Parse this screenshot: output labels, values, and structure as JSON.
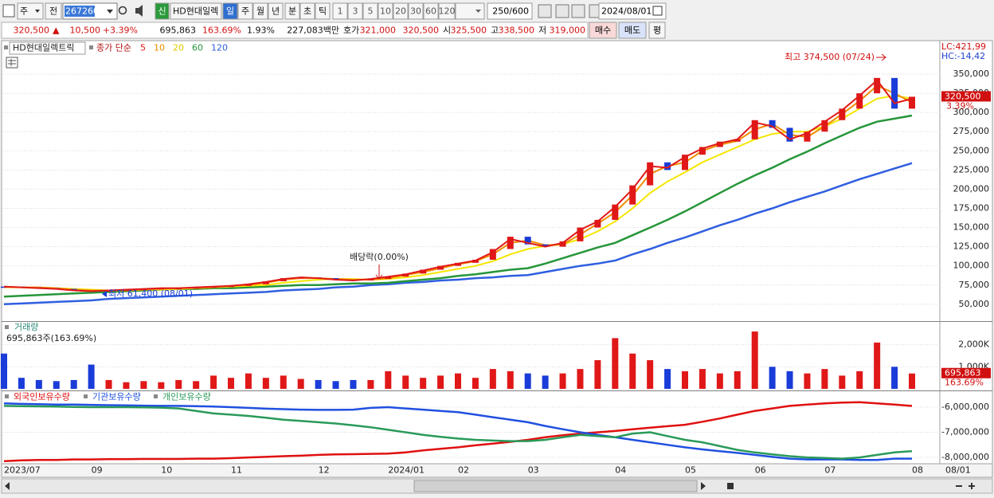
{
  "toolbar": {
    "period_type": "주",
    "prev": "전",
    "code": "267260",
    "new_badge": "신",
    "name": "HD현대일렉",
    "periods": [
      "일",
      "주",
      "월",
      "년",
      "분",
      "초",
      "틱"
    ],
    "intervals": [
      "1",
      "3",
      "5",
      "10",
      "20",
      "30",
      "60",
      "120"
    ],
    "count": "250/600",
    "date": "2024/08/01"
  },
  "quote": {
    "price": "320,500",
    "arrow": "▲",
    "change": "10,500",
    "change_pct": "+3.39%",
    "volume": "695,863",
    "volume_pct": "163.69%",
    "turnover": "1.93%",
    "amount": "227,083백만",
    "ask_label": "호가",
    "ask": "321,000",
    "bid": "320,500",
    "open_label": "시",
    "open": "325,500",
    "high_label": "고",
    "high": "338,500",
    "low_label": "저",
    "low": "319,000",
    "buy": "매수",
    "sell": "매도",
    "avg": "평"
  },
  "ui": {
    "end_date": "08/01"
  },
  "chart_data": [
    {
      "type": "stock",
      "title": "HD현대일렉트릭",
      "legend_title": "종가 단순",
      "categories": [
        "2023/07",
        null,
        null,
        null,
        null,
        "09",
        null,
        null,
        null,
        "10",
        null,
        null,
        null,
        "11",
        null,
        null,
        null,
        null,
        "12",
        null,
        null,
        null,
        "2024/01",
        null,
        null,
        null,
        "02",
        null,
        null,
        null,
        "03",
        null,
        null,
        null,
        null,
        "04",
        null,
        null,
        null,
        "05",
        null,
        null,
        null,
        "06",
        null,
        null,
        null,
        "07",
        null,
        null,
        null,
        null,
        "08"
      ],
      "close": [
        73000,
        72000,
        71000,
        70000,
        68000,
        67000,
        68000,
        69000,
        70000,
        71000,
        71000,
        72000,
        73000,
        74000,
        76000,
        80000,
        84000,
        85000,
        84000,
        82000,
        81000,
        83000,
        86000,
        90000,
        95000,
        100000,
        104000,
        108000,
        122000,
        138000,
        128000,
        125000,
        132000,
        150000,
        160000,
        180000,
        205000,
        235000,
        225000,
        245000,
        255000,
        262000,
        265000,
        290000,
        280000,
        262000,
        275000,
        290000,
        305000,
        325000,
        345000,
        305000,
        320500
      ],
      "up_color": "#e01818",
      "down_color": "#1a3cd8",
      "series": [
        {
          "name": "5",
          "color": "#e01818",
          "values": [
            73000,
            72000,
            71000,
            70000,
            68000,
            67000,
            68000,
            69000,
            70000,
            71000,
            71000,
            72000,
            73000,
            74000,
            76000,
            79000,
            83000,
            85000,
            84000,
            82000,
            81000,
            83000,
            86000,
            89000,
            94000,
            99000,
            103000,
            107000,
            118000,
            135000,
            130000,
            125000,
            130000,
            147000,
            158000,
            177000,
            200000,
            230000,
            228000,
            242000,
            253000,
            260000,
            265000,
            287000,
            282000,
            265000,
            273000,
            288000,
            303000,
            322000,
            342000,
            312000,
            318000
          ]
        },
        {
          "name": "10",
          "color": "#f08c00",
          "values": [
            73000,
            72000,
            72000,
            71000,
            69000,
            68000,
            68000,
            68000,
            69000,
            70000,
            71000,
            71000,
            72000,
            74000,
            75000,
            78000,
            82000,
            84000,
            84000,
            83000,
            82000,
            82000,
            84000,
            88000,
            92000,
            97000,
            102000,
            106000,
            115000,
            130000,
            133000,
            127000,
            128000,
            141000,
            155000,
            170000,
            192000,
            220000,
            230000,
            235000,
            250000,
            258000,
            263000,
            278000,
            285000,
            271000,
            268000,
            282000,
            298000,
            315000,
            335000,
            325000,
            313000
          ]
        },
        {
          "name": "20",
          "color": "#f5e600",
          "values": [
            72000,
            72000,
            71000,
            71000,
            70000,
            69000,
            68000,
            68000,
            69000,
            69000,
            70000,
            71000,
            72000,
            73000,
            74000,
            75000,
            78000,
            80000,
            82000,
            83000,
            83000,
            82000,
            83000,
            85000,
            88000,
            92000,
            96000,
            100000,
            106000,
            115000,
            122000,
            126000,
            128000,
            135000,
            145000,
            158000,
            175000,
            195000,
            210000,
            222000,
            235000,
            245000,
            255000,
            265000,
            272000,
            275000,
            275000,
            282000,
            292000,
            305000,
            318000,
            322000,
            318000
          ]
        },
        {
          "name": "60",
          "color": "#26963a",
          "values": [
            60000,
            61000,
            62000,
            63000,
            64000,
            65000,
            66000,
            67000,
            68000,
            69000,
            70000,
            70000,
            71000,
            71000,
            72000,
            73000,
            74000,
            75000,
            75000,
            76000,
            77000,
            77000,
            78000,
            80000,
            82000,
            84000,
            87000,
            89000,
            92000,
            95000,
            97000,
            103000,
            110000,
            117000,
            124000,
            130000,
            140000,
            150000,
            160000,
            171000,
            183000,
            195000,
            207000,
            218000,
            228000,
            239000,
            249000,
            260000,
            270000,
            280000,
            288000,
            292000,
            296000
          ]
        },
        {
          "name": "120",
          "color": "#2f5fe0",
          "values": [
            50000,
            51000,
            52000,
            53000,
            54000,
            55000,
            57000,
            58000,
            59000,
            60000,
            61000,
            62000,
            63000,
            64000,
            65000,
            66000,
            68000,
            69000,
            70000,
            72000,
            73000,
            75000,
            76000,
            78000,
            79000,
            81000,
            82000,
            84000,
            85000,
            87000,
            88000,
            92000,
            96000,
            100000,
            103000,
            107000,
            115000,
            122000,
            130000,
            137000,
            145000,
            153000,
            160000,
            168000,
            175000,
            183000,
            190000,
            197000,
            205000,
            213000,
            220000,
            227000,
            234000
          ]
        }
      ],
      "ylim": [
        28000,
        389500
      ],
      "yticks": [
        {
          "value": 50000,
          "label": "50,000"
        },
        {
          "value": 75000,
          "label": "75,000"
        },
        {
          "value": 100000,
          "label": "100,000"
        },
        {
          "value": 125000,
          "label": "125,000"
        },
        {
          "value": 150000,
          "label": "150,000"
        },
        {
          "value": 175000,
          "label": "175,000"
        },
        {
          "value": 200000,
          "label": "200,000"
        },
        {
          "value": 225000,
          "label": "225,000"
        },
        {
          "value": 250000,
          "label": "250,000"
        },
        {
          "value": 275000,
          "label": "275,000"
        },
        {
          "value": 300000,
          "label": "300,000"
        },
        {
          "value": 325000,
          "label": "325,000"
        },
        {
          "value": 350000,
          "label": "350,000"
        }
      ],
      "grid": true,
      "annotations": [
        {
          "text": "최고 374,500 (07/24)"
        },
        {
          "text": "최저 61,400 (08/01)"
        },
        {
          "text": "배당락(0.00%)"
        }
      ],
      "indicators": [
        "LC:421,99",
        "HC:-14,42"
      ],
      "last_label": "320,500",
      "last_pct_label": "3.39%"
    },
    {
      "type": "bar",
      "title": "거래량",
      "subtitle": "695,863주(163.69%)",
      "values": [
        1600000,
        500000,
        400000,
        350000,
        400000,
        1100000,
        400000,
        300000,
        350000,
        300000,
        400000,
        350000,
        600000,
        500000,
        700000,
        500000,
        600000,
        450000,
        400000,
        350000,
        400000,
        400000,
        800000,
        600000,
        500000,
        600000,
        700000,
        500000,
        900000,
        800000,
        700000,
        600000,
        700000,
        900000,
        1300000,
        2300000,
        1600000,
        1300000,
        900000,
        800000,
        900000,
        700000,
        800000,
        2600000,
        1000000,
        800000,
        700000,
        900000,
        600000,
        800000,
        2100000,
        1000000,
        695863
      ],
      "ylim": [
        0,
        3000000
      ],
      "yticks": [
        {
          "value": 1000000,
          "label": "1,000K"
        },
        {
          "value": 2000000,
          "label": "2,000K"
        }
      ],
      "grid": true,
      "last_label": "695,863",
      "last_pct_label": "163.69%"
    },
    {
      "type": "line",
      "series": [
        {
          "name": "외국인보유수량",
          "color": "#e01010",
          "values": [
            -8150000,
            -8120000,
            -8100000,
            -8100000,
            -8080000,
            -8080000,
            -8070000,
            -8070000,
            -8060000,
            -8060000,
            -8060000,
            -8050000,
            -8050000,
            -8030000,
            -8000000,
            -7980000,
            -7950000,
            -7930000,
            -7900000,
            -7880000,
            -7870000,
            -7860000,
            -7850000,
            -7800000,
            -7720000,
            -7660000,
            -7600000,
            -7520000,
            -7450000,
            -7380000,
            -7300000,
            -7200000,
            -7120000,
            -7050000,
            -7000000,
            -6950000,
            -6880000,
            -6820000,
            -6760000,
            -6700000,
            -6580000,
            -6450000,
            -6300000,
            -6150000,
            -6050000,
            -5950000,
            -5900000,
            -5850000,
            -5820000,
            -5800000,
            -5850000,
            -5900000,
            -5950000
          ]
        },
        {
          "name": "기관보유수량",
          "color": "#2050e0",
          "values": [
            -5850000,
            -5870000,
            -5880000,
            -5900000,
            -5900000,
            -5910000,
            -5920000,
            -5930000,
            -5940000,
            -5950000,
            -5950000,
            -5960000,
            -5980000,
            -6000000,
            -6030000,
            -6060000,
            -6080000,
            -6100000,
            -6110000,
            -6110000,
            -6100000,
            -6030000,
            -6000000,
            -6050000,
            -6100000,
            -6150000,
            -6200000,
            -6300000,
            -6400000,
            -6500000,
            -6600000,
            -6750000,
            -6880000,
            -7000000,
            -7100000,
            -7200000,
            -7300000,
            -7400000,
            -7500000,
            -7600000,
            -7680000,
            -7750000,
            -7820000,
            -7900000,
            -7980000,
            -8050000,
            -8080000,
            -8080000,
            -8080000,
            -8100000,
            -8100000,
            -8050000,
            -8050000
          ]
        },
        {
          "name": "개인보유수량",
          "color": "#2a9a5a",
          "values": [
            -5950000,
            -5960000,
            -5970000,
            -5980000,
            -5990000,
            -6000000,
            -6000000,
            -6000000,
            -6010000,
            -6020000,
            -6050000,
            -6150000,
            -6250000,
            -6300000,
            -6350000,
            -6420000,
            -6500000,
            -6550000,
            -6600000,
            -6650000,
            -6720000,
            -6800000,
            -6900000,
            -7000000,
            -7100000,
            -7180000,
            -7250000,
            -7300000,
            -7330000,
            -7350000,
            -7350000,
            -7300000,
            -7200000,
            -7100000,
            -7150000,
            -7200000,
            -7050000,
            -7000000,
            -7150000,
            -7300000,
            -7400000,
            -7550000,
            -7700000,
            -7800000,
            -7880000,
            -7950000,
            -8000000,
            -8020000,
            -8050000,
            -8000000,
            -7900000,
            -7800000,
            -7750000
          ]
        }
      ],
      "ylim": [
        -8220000,
        -5430000
      ],
      "yticks": [
        {
          "value": -6000000,
          "label": "-6,000,000"
        },
        {
          "value": -7000000,
          "label": "-7,000,000"
        },
        {
          "value": -8000000,
          "label": "-8,000,000"
        }
      ],
      "grid": true
    }
  ]
}
